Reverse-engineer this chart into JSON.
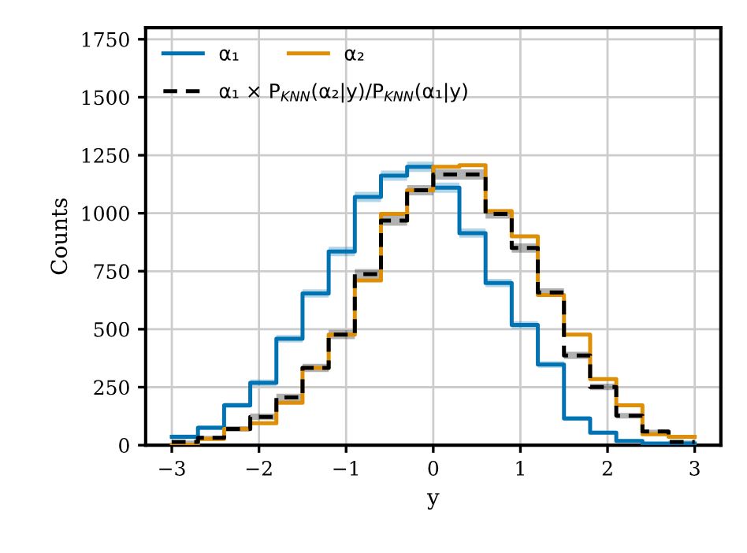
{
  "chart_data": {
    "type": "step",
    "xlabel": "y",
    "ylabel": "Counts",
    "x": [
      -3.0,
      -2.7,
      -2.4,
      -2.1,
      -1.8,
      -1.5,
      -1.2,
      -0.9,
      -0.6,
      -0.3,
      0.0,
      0.3,
      0.6,
      0.9,
      1.2,
      1.5,
      1.8,
      2.1,
      2.4,
      2.7,
      3.0
    ],
    "series": [
      {
        "name": "α₁",
        "color": "#0173b2",
        "values": [
          36,
          75,
          172,
          269,
          459,
          654,
          835,
          1070,
          1162,
          1200,
          1110,
          914,
          699,
          518,
          348,
          115,
          54,
          18,
          7,
          7,
          7
        ],
        "lower": [
          26,
          65,
          160,
          255,
          443,
          636,
          815,
          1048,
          1140,
          1178,
          1088,
          894,
          681,
          502,
          334,
          105,
          46,
          12,
          3,
          3,
          3
        ],
        "upper": [
          46,
          85,
          184,
          283,
          475,
          672,
          855,
          1092,
          1184,
          1222,
          1132,
          934,
          717,
          534,
          362,
          125,
          62,
          24,
          11,
          11,
          11
        ]
      },
      {
        "name": "α₂",
        "color": "#de8f05",
        "values": [
          2,
          27,
          70,
          95,
          183,
          333,
          477,
          710,
          997,
          1099,
          1200,
          1207,
          1009,
          900,
          647,
          477,
          285,
          172,
          47,
          36,
          36
        ]
      },
      {
        "name": "α₁ × P$_{KNN}$(α₂|y)/P$_{KNN}$(α₁|y)",
        "color": "#000000",
        "line_style": "dashed",
        "values": [
          14,
          32,
          70,
          122,
          206,
          333,
          477,
          737,
          968,
          1099,
          1167,
          1167,
          997,
          850,
          658,
          387,
          251,
          127,
          59,
          14,
          14
        ],
        "lower": [
          8,
          24,
          58,
          108,
          190,
          315,
          457,
          715,
          946,
          1077,
          1145,
          1145,
          977,
          830,
          640,
          371,
          237,
          115,
          51,
          8,
          8
        ],
        "upper": [
          20,
          40,
          82,
          136,
          222,
          351,
          497,
          759,
          990,
          1121,
          1189,
          1189,
          1017,
          870,
          676,
          403,
          265,
          139,
          67,
          20,
          20
        ]
      }
    ],
    "xlim": [
      -3.3,
      3.3
    ],
    "ylim": [
      0,
      1800
    ],
    "xticks": [
      {
        "value": -3,
        "label": "−3"
      },
      {
        "value": -2,
        "label": "−2"
      },
      {
        "value": -1,
        "label": "−1"
      },
      0,
      1,
      2,
      3
    ],
    "yticks": [
      0,
      250,
      500,
      750,
      1000,
      1250,
      1500,
      1750
    ],
    "grid": true,
    "legend": "top left"
  }
}
